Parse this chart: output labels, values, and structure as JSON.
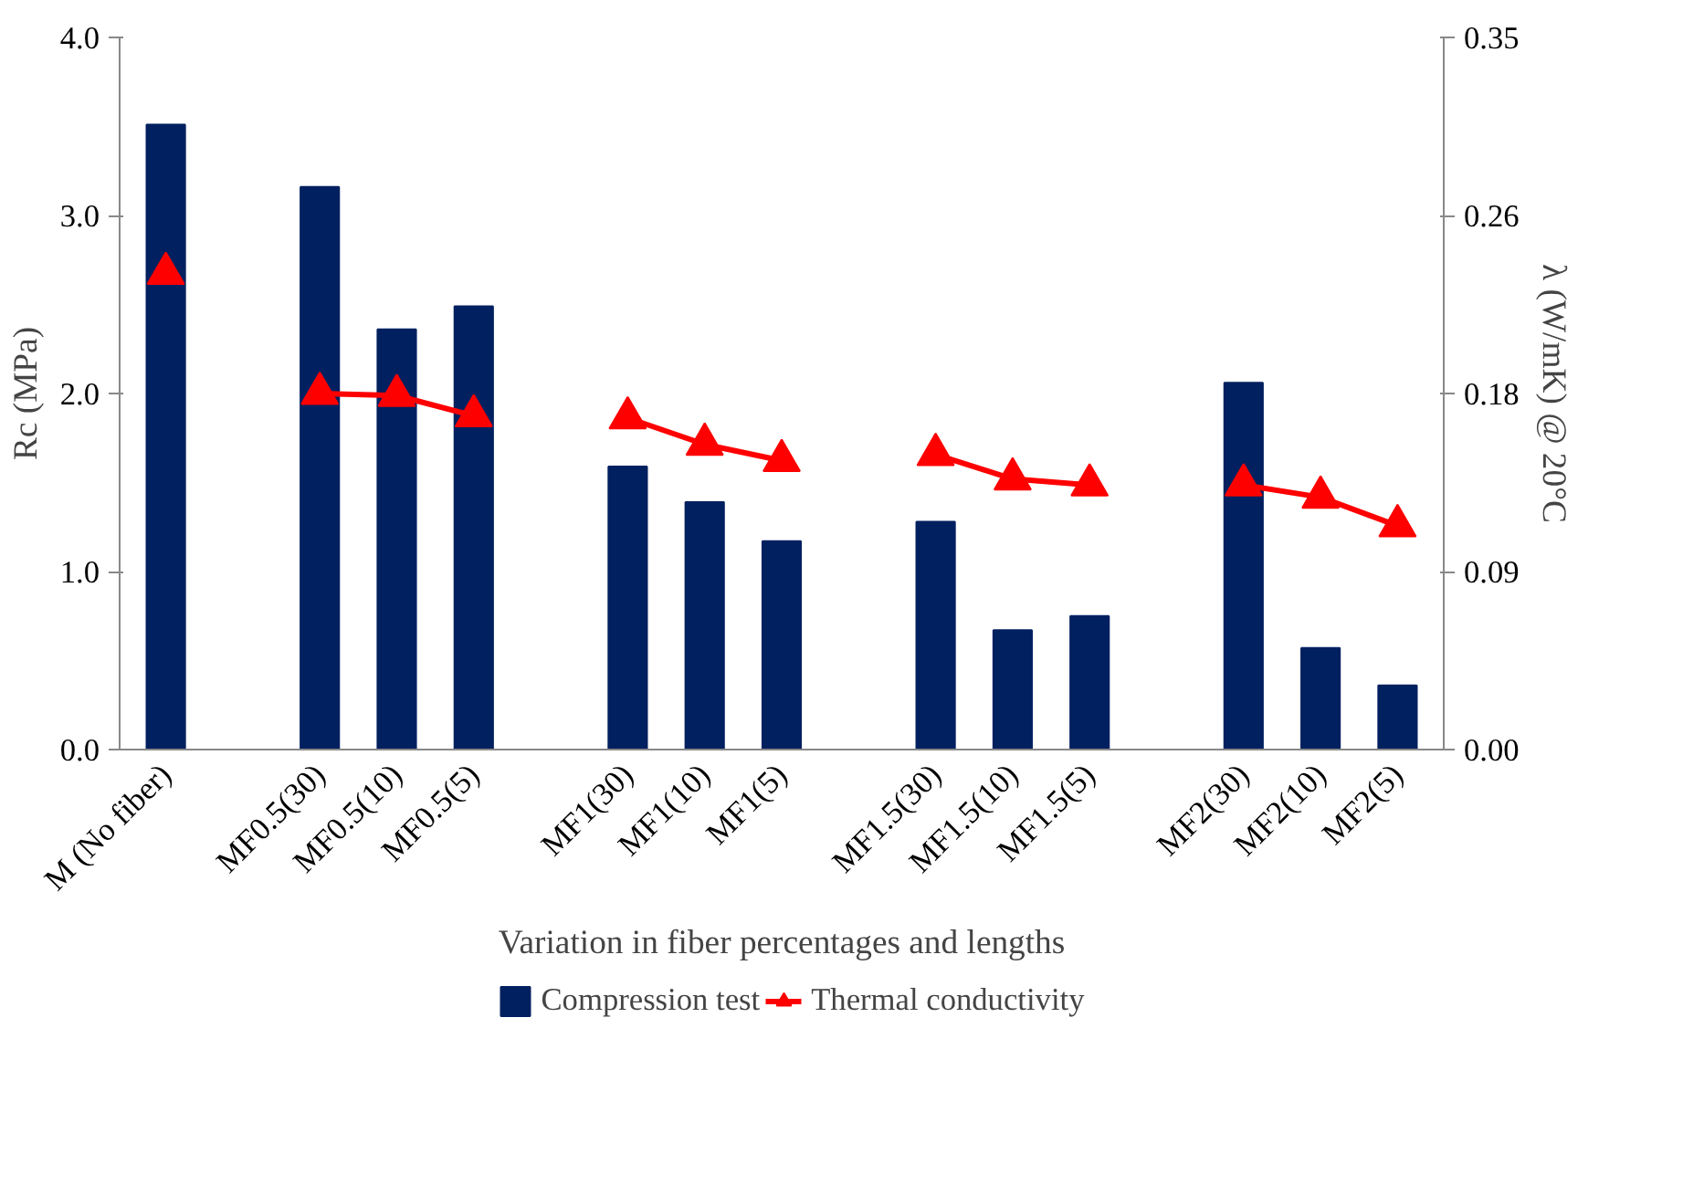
{
  "chart_data": {
    "type": "bar",
    "xlabel": "Variation in fiber percentages and lengths",
    "ylabel": "Rc (MPa)",
    "y2label": "λ (W/mK) @ 20°C",
    "categories": [
      "M (No fiber)",
      null,
      "MF0.5(30)",
      "MF0.5(10)",
      "MF0.5(5)",
      null,
      "MF1(30)",
      "MF1(10)",
      "MF1(5)",
      null,
      "MF1.5(30)",
      "MF1.5(10)",
      "MF1.5(5)",
      null,
      "MF2(30)",
      "MF2(10)",
      "MF2(5)"
    ],
    "series": [
      {
        "name": "Compression test",
        "color": "#002060",
        "values": [
          3.51,
          null,
          3.16,
          2.36,
          2.49,
          null,
          1.59,
          1.39,
          1.17,
          null,
          1.28,
          0.67,
          0.75,
          null,
          2.06,
          0.57,
          0.36
        ]
      },
      {
        "name": "Thermal conductivity",
        "type": "line",
        "axis": "y2",
        "color": "#ff0000",
        "marker": "triangle",
        "line_style": "solid",
        "values": [
          0.234,
          null,
          0.175,
          0.174,
          0.164,
          null,
          0.163,
          0.15,
          0.142,
          null,
          0.145,
          0.133,
          0.13,
          null,
          0.13,
          0.124,
          0.11
        ]
      }
    ],
    "ylim": [
      0,
      4
    ],
    "yticks": [
      {
        "value": 0,
        "label": "0.0"
      },
      {
        "value": 1,
        "label": "1.0"
      },
      {
        "value": 2,
        "label": "2.0"
      },
      {
        "value": 3,
        "label": "3.0"
      },
      {
        "value": 4,
        "label": "4.0"
      }
    ],
    "y2lim": [
      0,
      0.35
    ],
    "y2ticks": [
      {
        "value": 0,
        "label": "0.00"
      },
      {
        "value": 0.0875,
        "label": "0.09"
      },
      {
        "value": 0.175,
        "label": "0.18"
      },
      {
        "value": 0.2625,
        "label": "0.26"
      },
      0.35
    ],
    "grid": false,
    "legend": "bottom"
  }
}
